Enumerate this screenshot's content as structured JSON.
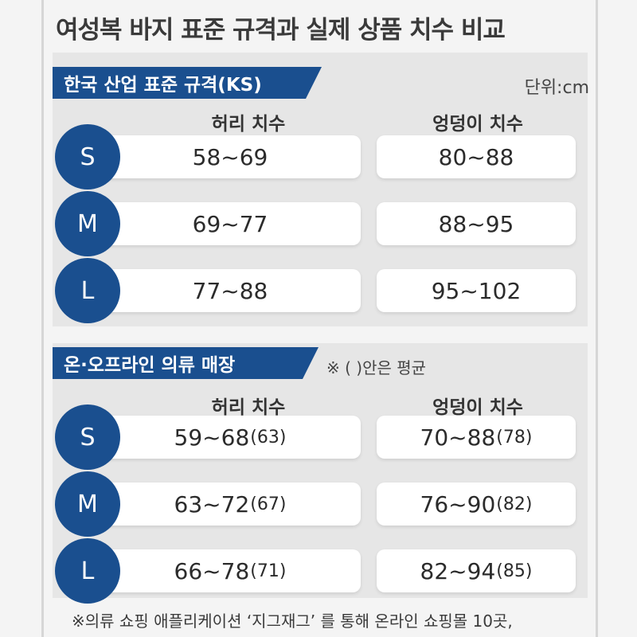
{
  "title": "여성복 바지 표준 규격과 실제 상품 치수 비교",
  "unit": "단위:cm",
  "sections": [
    {
      "header": "한국 산업 표준 규격(KS)",
      "columns": {
        "waist": "허리 치수",
        "hip": "엉덩이 치수"
      },
      "rows": [
        {
          "size": "S",
          "waist": "58~69",
          "waist_avg": "",
          "hip": "80~88",
          "hip_avg": ""
        },
        {
          "size": "M",
          "waist": "69~77",
          "waist_avg": "",
          "hip": "88~95",
          "hip_avg": ""
        },
        {
          "size": "L",
          "waist": "77~88",
          "waist_avg": "",
          "hip": "95~102",
          "hip_avg": ""
        }
      ]
    },
    {
      "header": "온·오프라인 의류 매장",
      "note": "※ ( )안은 평균",
      "columns": {
        "waist": "허리 치수",
        "hip": "엉덩이 치수"
      },
      "rows": [
        {
          "size": "S",
          "waist": "59~68",
          "waist_avg": "(63)",
          "hip": "70~88",
          "hip_avg": "(78)"
        },
        {
          "size": "M",
          "waist": "63~72",
          "waist_avg": "(67)",
          "hip": "76~90",
          "hip_avg": "(82)"
        },
        {
          "size": "L",
          "waist": "66~78",
          "waist_avg": "(71)",
          "hip": "82~94",
          "hip_avg": "(85)"
        }
      ]
    }
  ],
  "footnote": "※의류 쇼핑 애플리케이션 ‘지그재그’ 를 통해 온라인 쇼핑몰 10곳,",
  "colors": {
    "accent": "#1a4f8f",
    "panel": "#e6e6e6",
    "background": "#f4f4f4"
  }
}
